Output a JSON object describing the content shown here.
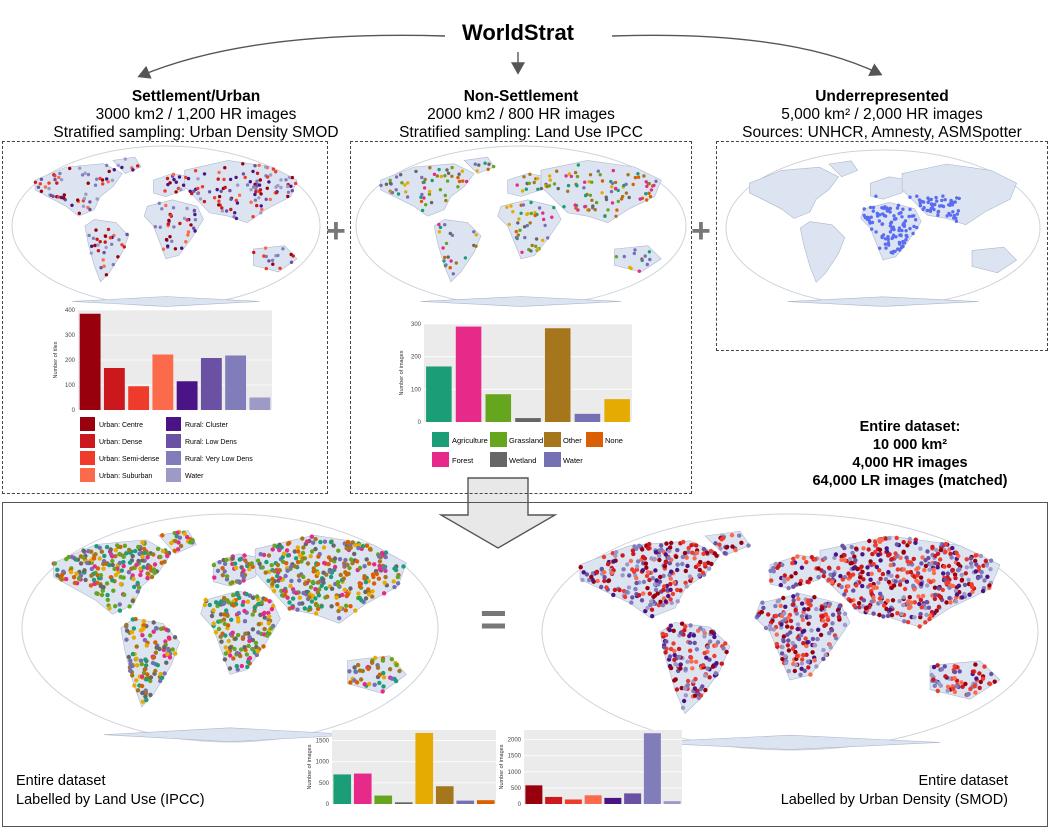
{
  "title": "WorldStrat",
  "groups": [
    {
      "heading": "Settlement/Urban",
      "line1": "3000 km2 / 1,200 HR images",
      "line2": "Stratified sampling: Urban Density SMOD"
    },
    {
      "heading": "Non-Settlement",
      "line1": "2000 km2 / 800 HR images",
      "line2": "Stratified sampling: Land Use IPCC"
    },
    {
      "heading": "Underrepresented",
      "line1": "5,000 km² / 2,000 HR images",
      "line2": "Sources: UNHCR, Amnesty, ASMSpotter"
    }
  ],
  "plus_symbol": "+",
  "equals_symbol": "=",
  "totals": {
    "heading": "Entire dataset:",
    "area": "10 000 km²",
    "hr": "4,000 HR  images",
    "lr": "64,000 LR images (matched)"
  },
  "bottom_left_caption": {
    "line1": "Entire dataset",
    "line2": "Labelled by Land Use (IPCC)"
  },
  "bottom_right_caption": {
    "line1": "Entire dataset",
    "line2": "Labelled by Urban Density (SMOD)"
  },
  "colors": {
    "land": "#dce4f2",
    "smod": [
      "#99000d",
      "#cb181d",
      "#ef3b2c",
      "#fb6a4a",
      "#4a1486",
      "#6a51a3",
      "#807dba",
      "#9e9ac8"
    ],
    "ipcc": [
      "#1b9e77",
      "#e7298a",
      "#66a61e",
      "#666666",
      "#a6761d",
      "#7570b3",
      "#e6ab02",
      "#d95f02"
    ],
    "underrep": "#5a6cf0"
  },
  "chart_data": [
    {
      "type": "bar",
      "ylabel": "Number of tiles",
      "yticks": [
        0,
        100,
        200,
        300,
        400
      ],
      "ylim": [
        0,
        400
      ],
      "grid": true,
      "categories": [
        "Urban: Centre",
        "Urban: Dense",
        "Urban: Semi-dense",
        "Urban: Suburban",
        "Rural: Cluster",
        "Rural: Low Dens",
        "Rural: Very Low Dens",
        "Water"
      ],
      "values": [
        385,
        168,
        95,
        222,
        115,
        208,
        218,
        50
      ],
      "legend": "below"
    },
    {
      "type": "bar",
      "ylabel": "Number of images",
      "yticks": [
        0,
        100,
        200,
        300
      ],
      "ylim": [
        0,
        300
      ],
      "grid": true,
      "categories": [
        "Agriculture",
        "Forest",
        "Grassland",
        "Wetland",
        "Other",
        "Water",
        "None"
      ],
      "values": [
        170,
        292,
        85,
        12,
        287,
        25,
        70
      ],
      "legend": "below"
    },
    {
      "type": "bar",
      "ylabel": "Number of images",
      "yticks": [
        0,
        500,
        1000,
        1500
      ],
      "ylim": [
        0,
        1750
      ],
      "grid": true,
      "categories": [
        "Agriculture",
        "Forest",
        "Grassland",
        "Wetland",
        "Other",
        "None",
        "Water",
        "None"
      ],
      "values": [
        700,
        720,
        200,
        40,
        1680,
        420,
        80,
        90
      ]
    },
    {
      "type": "bar",
      "ylabel": "Number of images",
      "yticks": [
        0,
        500,
        1000,
        1500,
        2000
      ],
      "ylim": [
        0,
        2300
      ],
      "grid": true,
      "categories": [
        "Urban: Centre",
        "Urban: Dense",
        "Urban: Semi-dense",
        "Urban: Suburban",
        "Rural: Cluster",
        "Rural: Low Dens",
        "Rural: Very Low Dens",
        "Water"
      ],
      "values": [
        580,
        220,
        140,
        270,
        190,
        330,
        2200,
        90
      ]
    }
  ]
}
